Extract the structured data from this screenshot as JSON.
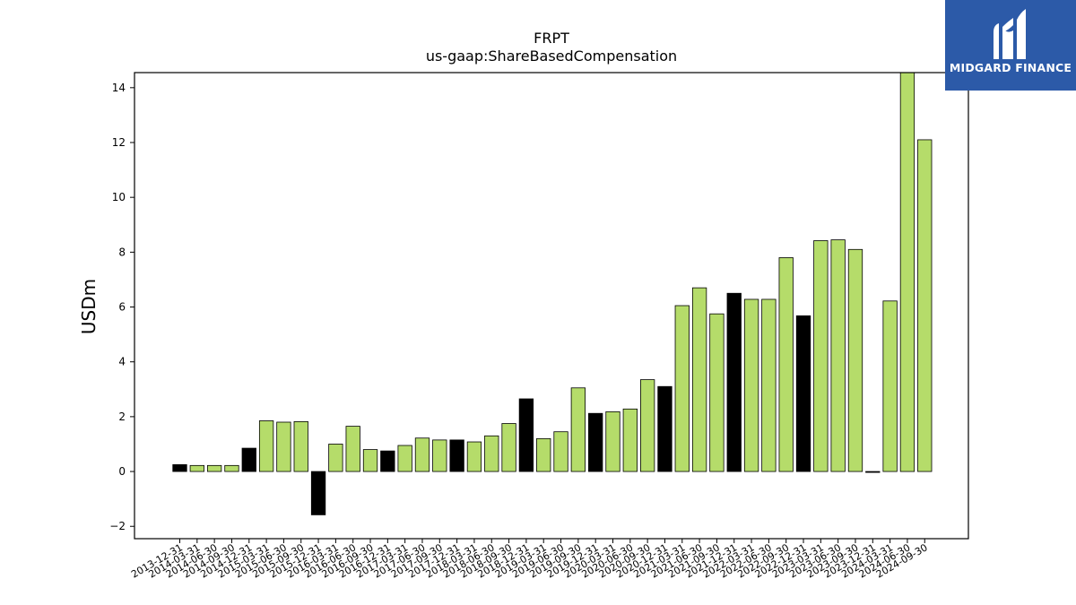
{
  "chart_data": {
    "type": "bar",
    "title": "FRPT",
    "subtitle": "us-gaap:ShareBasedCompensation",
    "ylabel": "USDm",
    "xlabel": "",
    "ylim": [
      -2.45,
      14.55
    ],
    "yticks": [
      -2,
      0,
      2,
      4,
      6,
      8,
      10,
      12,
      14
    ],
    "grid": false,
    "colors": {
      "quarter": "#b5dc6a",
      "annual": "#000000",
      "edge": "#000000"
    },
    "categories": [
      "2013-12-31",
      "2014-03-31",
      "2014-06-30",
      "2014-09-30",
      "2014-12-31",
      "2015-03-31",
      "2015-06-30",
      "2015-09-30",
      "2015-12-31",
      "2016-03-31",
      "2016-06-30",
      "2016-09-30",
      "2016-12-31",
      "2017-03-31",
      "2017-06-30",
      "2017-09-30",
      "2017-12-31",
      "2018-03-31",
      "2018-06-30",
      "2018-09-30",
      "2018-12-31",
      "2019-03-31",
      "2019-06-30",
      "2019-09-30",
      "2019-12-31",
      "2020-03-31",
      "2020-06-30",
      "2020-09-30",
      "2020-12-31",
      "2021-03-31",
      "2021-06-30",
      "2021-09-30",
      "2021-12-31",
      "2022-03-31",
      "2022-06-30",
      "2022-09-30",
      "2022-12-31",
      "2023-03-31",
      "2023-06-30",
      "2023-09-30",
      "2023-12-31",
      "2024-03-31",
      "2024-06-30",
      "2024-09-30"
    ],
    "values": [
      0.25,
      0.22,
      0.22,
      0.22,
      0.85,
      1.85,
      1.8,
      1.82,
      -1.58,
      1.0,
      1.65,
      0.8,
      0.75,
      0.95,
      1.22,
      1.15,
      1.15,
      1.08,
      1.3,
      1.75,
      2.65,
      1.2,
      1.45,
      3.05,
      2.12,
      2.18,
      2.28,
      3.35,
      3.1,
      6.05,
      6.7,
      5.75,
      6.5,
      6.28,
      6.28,
      7.8,
      5.68,
      8.42,
      8.45,
      8.1,
      -0.02,
      6.22,
      14.55,
      12.1
    ],
    "bar_kind": [
      "annual",
      "quarter",
      "quarter",
      "quarter",
      "annual",
      "quarter",
      "quarter",
      "quarter",
      "annual",
      "quarter",
      "quarter",
      "quarter",
      "annual",
      "quarter",
      "quarter",
      "quarter",
      "annual",
      "quarter",
      "quarter",
      "quarter",
      "annual",
      "quarter",
      "quarter",
      "quarter",
      "annual",
      "quarter",
      "quarter",
      "quarter",
      "annual",
      "quarter",
      "quarter",
      "quarter",
      "annual",
      "quarter",
      "quarter",
      "quarter",
      "annual",
      "quarter",
      "quarter",
      "quarter",
      "annual",
      "quarter",
      "quarter",
      "quarter"
    ]
  },
  "logo": {
    "text": "MIDGARD FINANCE",
    "color": "#2c5aa8"
  }
}
